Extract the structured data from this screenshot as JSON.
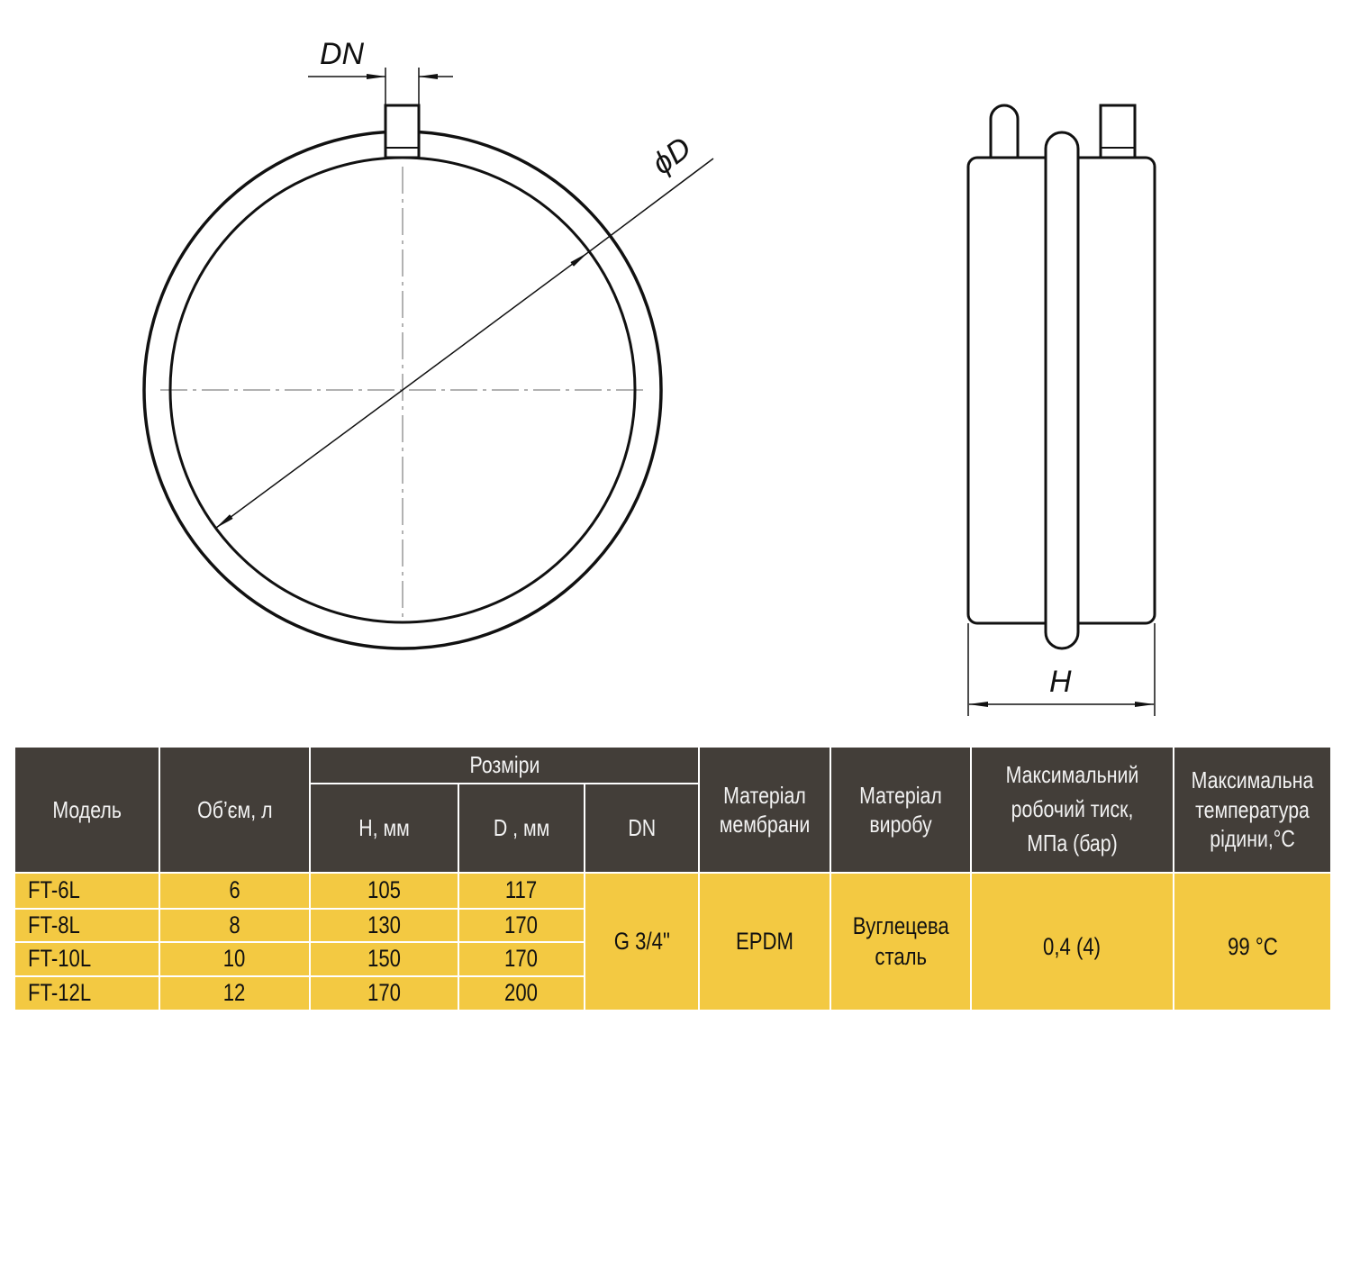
{
  "drawing": {
    "dn_label": "DN",
    "diameter_label": "ϕD",
    "height_label": "H"
  },
  "table": {
    "headers": {
      "model": "Модель",
      "volume": "Об’єм, л",
      "dimensions": "Розміри",
      "h": "H, мм",
      "d": "D  , мм",
      "dn": "DN",
      "membrane": "Матеріал мембрани",
      "material": "Матеріал виробу",
      "pressure": "Максимальний робочий тиск, МПа (бар)",
      "temperature": "Максимальна температура рідини,°C"
    },
    "rows": [
      {
        "model": "FT-6L",
        "volume": "6",
        "h": "105",
        "d": "117"
      },
      {
        "model": "FT-8L",
        "volume": "8",
        "h": "130",
        "d": "170"
      },
      {
        "model": "FT-10L",
        "volume": "10",
        "h": "150",
        "d": "170"
      },
      {
        "model": "FT-12L",
        "volume": "12",
        "h": "170",
        "d": "200"
      }
    ],
    "shared": {
      "dn": "G 3/4\"",
      "membrane": "EPDM",
      "material": "Вуглецева сталь",
      "pressure": "0,4 (4)",
      "temperature": "99 °C"
    },
    "colors": {
      "header_bg": "#433e39",
      "body_bg": "#f3c942"
    }
  }
}
